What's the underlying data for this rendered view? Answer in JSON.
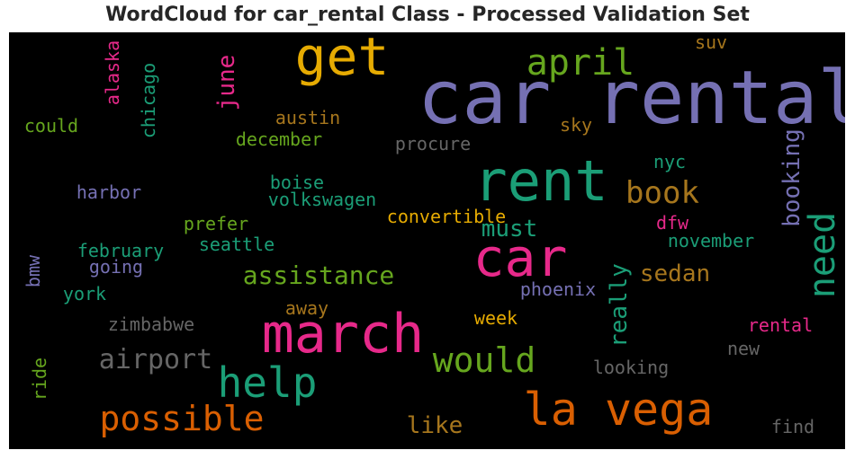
{
  "chart_data": {
    "type": "wordcloud",
    "title": "WordCloud for car_rental Class - Processed Validation Set",
    "background": "#000000",
    "palette": {
      "green": "#1b9e77",
      "orange": "#d95f02",
      "purple": "#7570b3",
      "pink": "#e7298a",
      "lime": "#66a61e",
      "gold": "#e6ab02",
      "brown": "#a6761d",
      "gray": "#666666"
    },
    "words": [
      {
        "text": "car rental",
        "color": "purple",
        "size": 5,
        "rotated": false
      },
      {
        "text": "rent",
        "color": "green",
        "size": 4,
        "rotated": false
      },
      {
        "text": "car",
        "color": "pink",
        "size": 4,
        "rotated": false
      },
      {
        "text": "march",
        "color": "pink",
        "size": 4,
        "rotated": false
      },
      {
        "text": "get",
        "color": "gold",
        "size": 4,
        "rotated": false
      },
      {
        "text": "la vega",
        "color": "orange",
        "size": 4,
        "rotated": false
      },
      {
        "text": "help",
        "color": "green",
        "size": 3,
        "rotated": false
      },
      {
        "text": "possible",
        "color": "orange",
        "size": 3,
        "rotated": false
      },
      {
        "text": "need",
        "color": "green",
        "size": 3,
        "rotated": true
      },
      {
        "text": "april",
        "color": "lime",
        "size": 3,
        "rotated": false
      },
      {
        "text": "would",
        "color": "lime",
        "size": 3,
        "rotated": false
      },
      {
        "text": "book",
        "color": "brown",
        "size": 3,
        "rotated": false
      },
      {
        "text": "airport",
        "color": "gray",
        "size": 2,
        "rotated": false
      },
      {
        "text": "assistance",
        "color": "lime",
        "size": 2,
        "rotated": false
      },
      {
        "text": "booking",
        "color": "purple",
        "size": 2,
        "rotated": true
      },
      {
        "text": "really",
        "color": "green",
        "size": 2,
        "rotated": true
      },
      {
        "text": "june",
        "color": "pink",
        "size": 2,
        "rotated": true
      },
      {
        "text": "sedan",
        "color": "brown",
        "size": 2,
        "rotated": false
      },
      {
        "text": "like",
        "color": "brown",
        "size": 2,
        "rotated": false
      },
      {
        "text": "must",
        "color": "green",
        "size": 2,
        "rotated": false
      },
      {
        "text": "could",
        "color": "lime",
        "size": 1,
        "rotated": false
      },
      {
        "text": "chicago",
        "color": "green",
        "size": 1,
        "rotated": true
      },
      {
        "text": "alaska",
        "color": "pink",
        "size": 1,
        "rotated": true
      },
      {
        "text": "austin",
        "color": "brown",
        "size": 1,
        "rotated": false
      },
      {
        "text": "december",
        "color": "lime",
        "size": 1,
        "rotated": false
      },
      {
        "text": "procure",
        "color": "gray",
        "size": 1,
        "rotated": false
      },
      {
        "text": "sky",
        "color": "brown",
        "size": 1,
        "rotated": false
      },
      {
        "text": "suv",
        "color": "brown",
        "size": 1,
        "rotated": false
      },
      {
        "text": "nyc",
        "color": "green",
        "size": 1,
        "rotated": false
      },
      {
        "text": "harbor",
        "color": "purple",
        "size": 1,
        "rotated": false
      },
      {
        "text": "boise",
        "color": "green",
        "size": 1,
        "rotated": false
      },
      {
        "text": "volkswagen",
        "color": "green",
        "size": 1,
        "rotated": false
      },
      {
        "text": "convertible",
        "color": "gold",
        "size": 1,
        "rotated": false
      },
      {
        "text": "dfw",
        "color": "pink",
        "size": 1,
        "rotated": false
      },
      {
        "text": "prefer",
        "color": "lime",
        "size": 1,
        "rotated": false
      },
      {
        "text": "february",
        "color": "green",
        "size": 1,
        "rotated": false
      },
      {
        "text": "seattle",
        "color": "green",
        "size": 1,
        "rotated": false
      },
      {
        "text": "november",
        "color": "green",
        "size": 1,
        "rotated": false
      },
      {
        "text": "going",
        "color": "purple",
        "size": 1,
        "rotated": false
      },
      {
        "text": "bmw",
        "color": "purple",
        "size": 1,
        "rotated": true
      },
      {
        "text": "york",
        "color": "green",
        "size": 1,
        "rotated": false
      },
      {
        "text": "phoenix",
        "color": "purple",
        "size": 1,
        "rotated": false
      },
      {
        "text": "away",
        "color": "brown",
        "size": 1,
        "rotated": false
      },
      {
        "text": "zimbabwe",
        "color": "gray",
        "size": 1,
        "rotated": false
      },
      {
        "text": "week",
        "color": "gold",
        "size": 1,
        "rotated": false
      },
      {
        "text": "rental",
        "color": "pink",
        "size": 1,
        "rotated": false
      },
      {
        "text": "new",
        "color": "gray",
        "size": 1,
        "rotated": false
      },
      {
        "text": "looking",
        "color": "gray",
        "size": 1,
        "rotated": false
      },
      {
        "text": "ride",
        "color": "lime",
        "size": 1,
        "rotated": true
      },
      {
        "text": "find",
        "color": "gray",
        "size": 1,
        "rotated": false
      }
    ]
  }
}
